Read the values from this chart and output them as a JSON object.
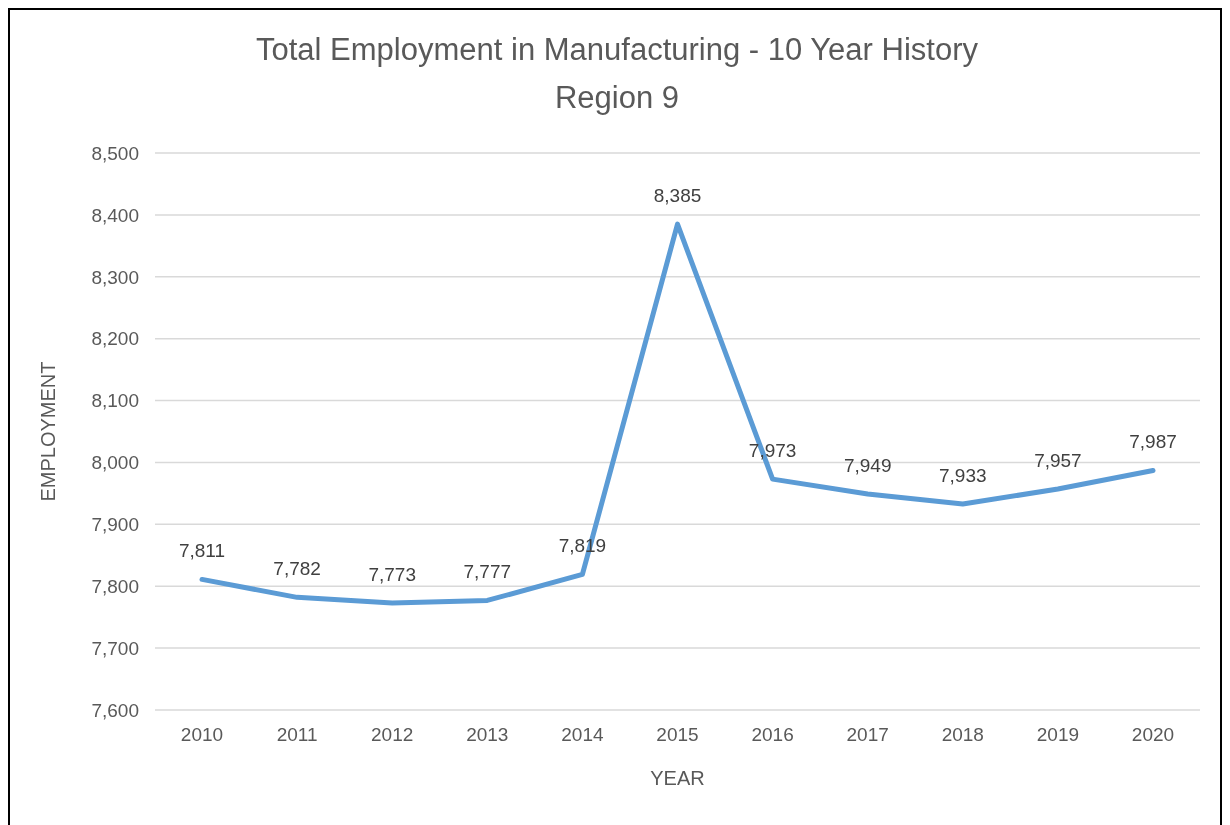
{
  "chart_data": {
    "type": "line",
    "title": "Total Employment in Manufacturing - 10 Year History",
    "subtitle": "Region 9",
    "xlabel": "YEAR",
    "ylabel": "EMPLOYMENT",
    "categories": [
      "2010",
      "2011",
      "2012",
      "2013",
      "2014",
      "2015",
      "2016",
      "2017",
      "2018",
      "2019",
      "2020"
    ],
    "series": [
      {
        "color": "#5b9bd5",
        "values": [
          7811,
          7782,
          7773,
          7777,
          7819,
          8385,
          7973,
          7949,
          7933,
          7957,
          7987
        ],
        "value_labels": [
          "7,811",
          "7,782",
          "7,773",
          "7,777",
          "7,819",
          "8,385",
          "7,973",
          "7,949",
          "7,933",
          "7,957",
          "7,987"
        ]
      }
    ],
    "ylim": [
      7600,
      8500
    ],
    "yticks": [
      {
        "value": 7600,
        "label": "7,600"
      },
      {
        "value": 7700,
        "label": "7,700"
      },
      {
        "value": 7800,
        "label": "7,800"
      },
      {
        "value": 7900,
        "label": "7,900"
      },
      {
        "value": 8000,
        "label": "8,000"
      },
      {
        "value": 8100,
        "label": "8,100"
      },
      {
        "value": 8200,
        "label": "8,200"
      },
      {
        "value": 8300,
        "label": "8,300"
      },
      {
        "value": 8400,
        "label": "8,400"
      },
      {
        "value": 8500,
        "label": "8,500"
      }
    ],
    "grid": "y",
    "marker": "none",
    "line_style": "solid"
  }
}
